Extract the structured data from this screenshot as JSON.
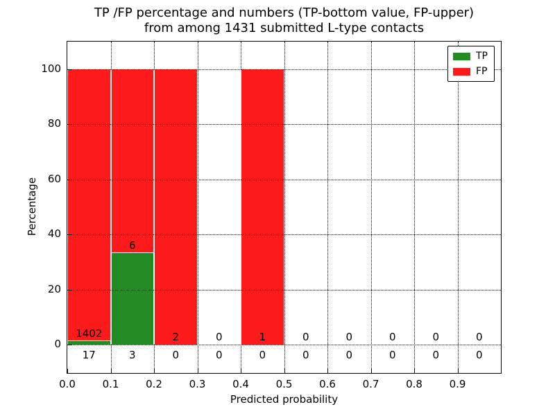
{
  "figure": {
    "title_line1": "TP /FP percentage and numbers (TP-bottom value, FP-upper)",
    "title_line2": "from among 1431 submitted L-type contacts",
    "xlabel": "Predicted probability",
    "ylabel": "Percentage"
  },
  "legend": {
    "items": [
      {
        "label": "TP",
        "color": "#228b22"
      },
      {
        "label": "FP",
        "color": "#fc1a1a"
      }
    ]
  },
  "chart_data": {
    "type": "bar",
    "stacked": true,
    "title": "TP /FP percentage and numbers (TP-bottom value, FP-upper) from among 1431 submitted L-type contacts",
    "xlabel": "Predicted probability",
    "ylabel": "Percentage",
    "xlim": [
      0.0,
      1.0
    ],
    "ylim": [
      -10,
      110
    ],
    "grid": true,
    "legend_position": "upper right",
    "total_contacts": 1431,
    "bin_width": 0.1,
    "bin_edges": [
      0.0,
      0.1,
      0.2,
      0.3,
      0.4,
      0.5,
      0.6,
      0.7,
      0.8,
      0.9,
      1.0
    ],
    "x_tick_labels": [
      "0.0",
      "0.1",
      "0.2",
      "0.3",
      "0.4",
      "0.5",
      "0.6",
      "0.7",
      "0.8",
      "0.9"
    ],
    "y_tick_values": [
      0,
      20,
      40,
      60,
      80,
      100
    ],
    "y_tick_labels": [
      "0",
      "20",
      "40",
      "60",
      "80",
      "100"
    ],
    "series": [
      {
        "name": "TP",
        "color": "#228b22",
        "counts": [
          17,
          3,
          0,
          0,
          0,
          0,
          0,
          0,
          0,
          0
        ],
        "percentages": [
          1.2,
          33.3,
          0,
          0,
          0,
          0,
          0,
          0,
          0,
          0
        ]
      },
      {
        "name": "FP",
        "color": "#fc1a1a",
        "counts": [
          1402,
          6,
          2,
          0,
          1,
          0,
          0,
          0,
          0,
          0
        ],
        "percentages": [
          98.8,
          66.7,
          100,
          0,
          100,
          0,
          0,
          0,
          0,
          0
        ]
      }
    ]
  }
}
